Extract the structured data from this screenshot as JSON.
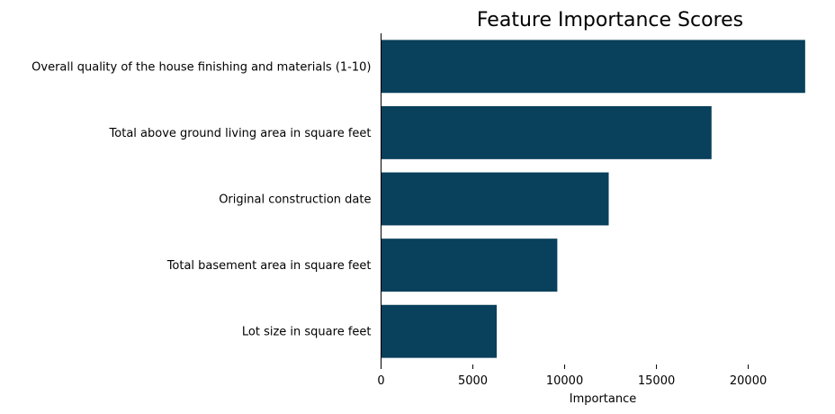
{
  "chart_data": {
    "type": "bar",
    "orientation": "horizontal",
    "title": "Feature Importance Scores",
    "xlabel": "Importance",
    "ylabel": "",
    "xlim": [
      0,
      23500
    ],
    "xticks": [
      0,
      5000,
      10000,
      15000,
      20000
    ],
    "xtick_labels": [
      "0",
      "5000",
      "10000",
      "15000",
      "20000"
    ],
    "categories": [
      "Overall quality of the house finishing and materials (1-10)",
      "Total above ground living area in square feet",
      "Original construction date",
      "Total basement area in square feet",
      "Lot size in square feet"
    ],
    "values": [
      23100,
      18000,
      12400,
      9600,
      6300
    ],
    "bar_color": "#09405b",
    "grid": false
  }
}
